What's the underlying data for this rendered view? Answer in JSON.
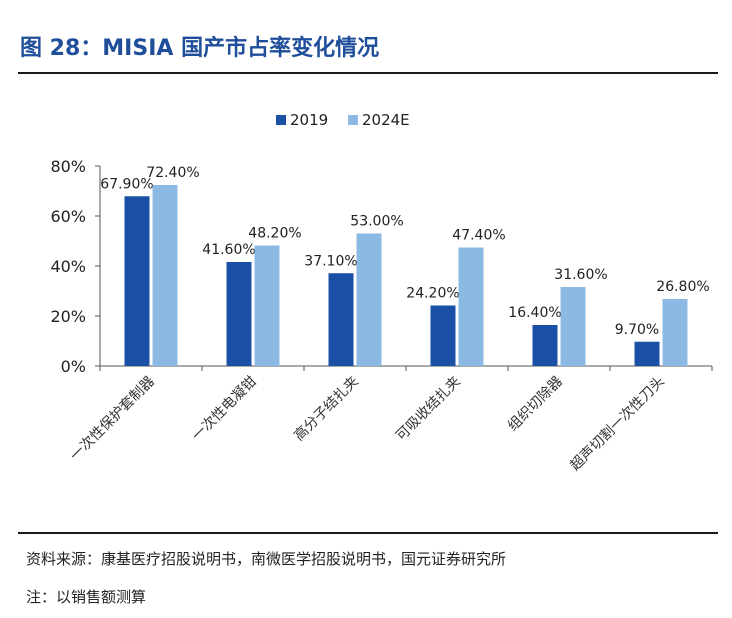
{
  "title": "图 28：MISIA 国产市占率变化情况",
  "source": "资料来源：康基医疗招股说明书，南微医学招股说明书，国元证券研究所",
  "note": "注：以销售额测算",
  "colors": {
    "series_2019": "#1a4fa6",
    "series_2024E": "#8cb8e4",
    "title": "#1f4e9a"
  },
  "chart_data": {
    "type": "bar",
    "categories": [
      "一次性保护套制器",
      "一次性电凝钳",
      "高分子结扎夹",
      "可吸收结扎夹",
      "组织切除器",
      "超声切割一次性刀头"
    ],
    "series": [
      {
        "name": "2019",
        "values": [
          67.9,
          41.6,
          37.1,
          24.2,
          16.4,
          9.7
        ],
        "labels": [
          "67.90%",
          "41.60%",
          "37.10%",
          "24.20%",
          "16.40%",
          "9.70%"
        ]
      },
      {
        "name": "2024E",
        "values": [
          72.4,
          48.2,
          53.0,
          47.4,
          31.6,
          26.8
        ],
        "labels": [
          "72.40%",
          "48.20%",
          "53.00%",
          "47.40%",
          "31.60%",
          "26.80%"
        ]
      }
    ],
    "yticks": [
      "0%",
      "20%",
      "40%",
      "60%",
      "80%"
    ],
    "ytick_values": [
      0,
      20,
      40,
      60,
      80
    ],
    "ylim": [
      0,
      80
    ],
    "legend_position": "top-center",
    "grid": false
  }
}
